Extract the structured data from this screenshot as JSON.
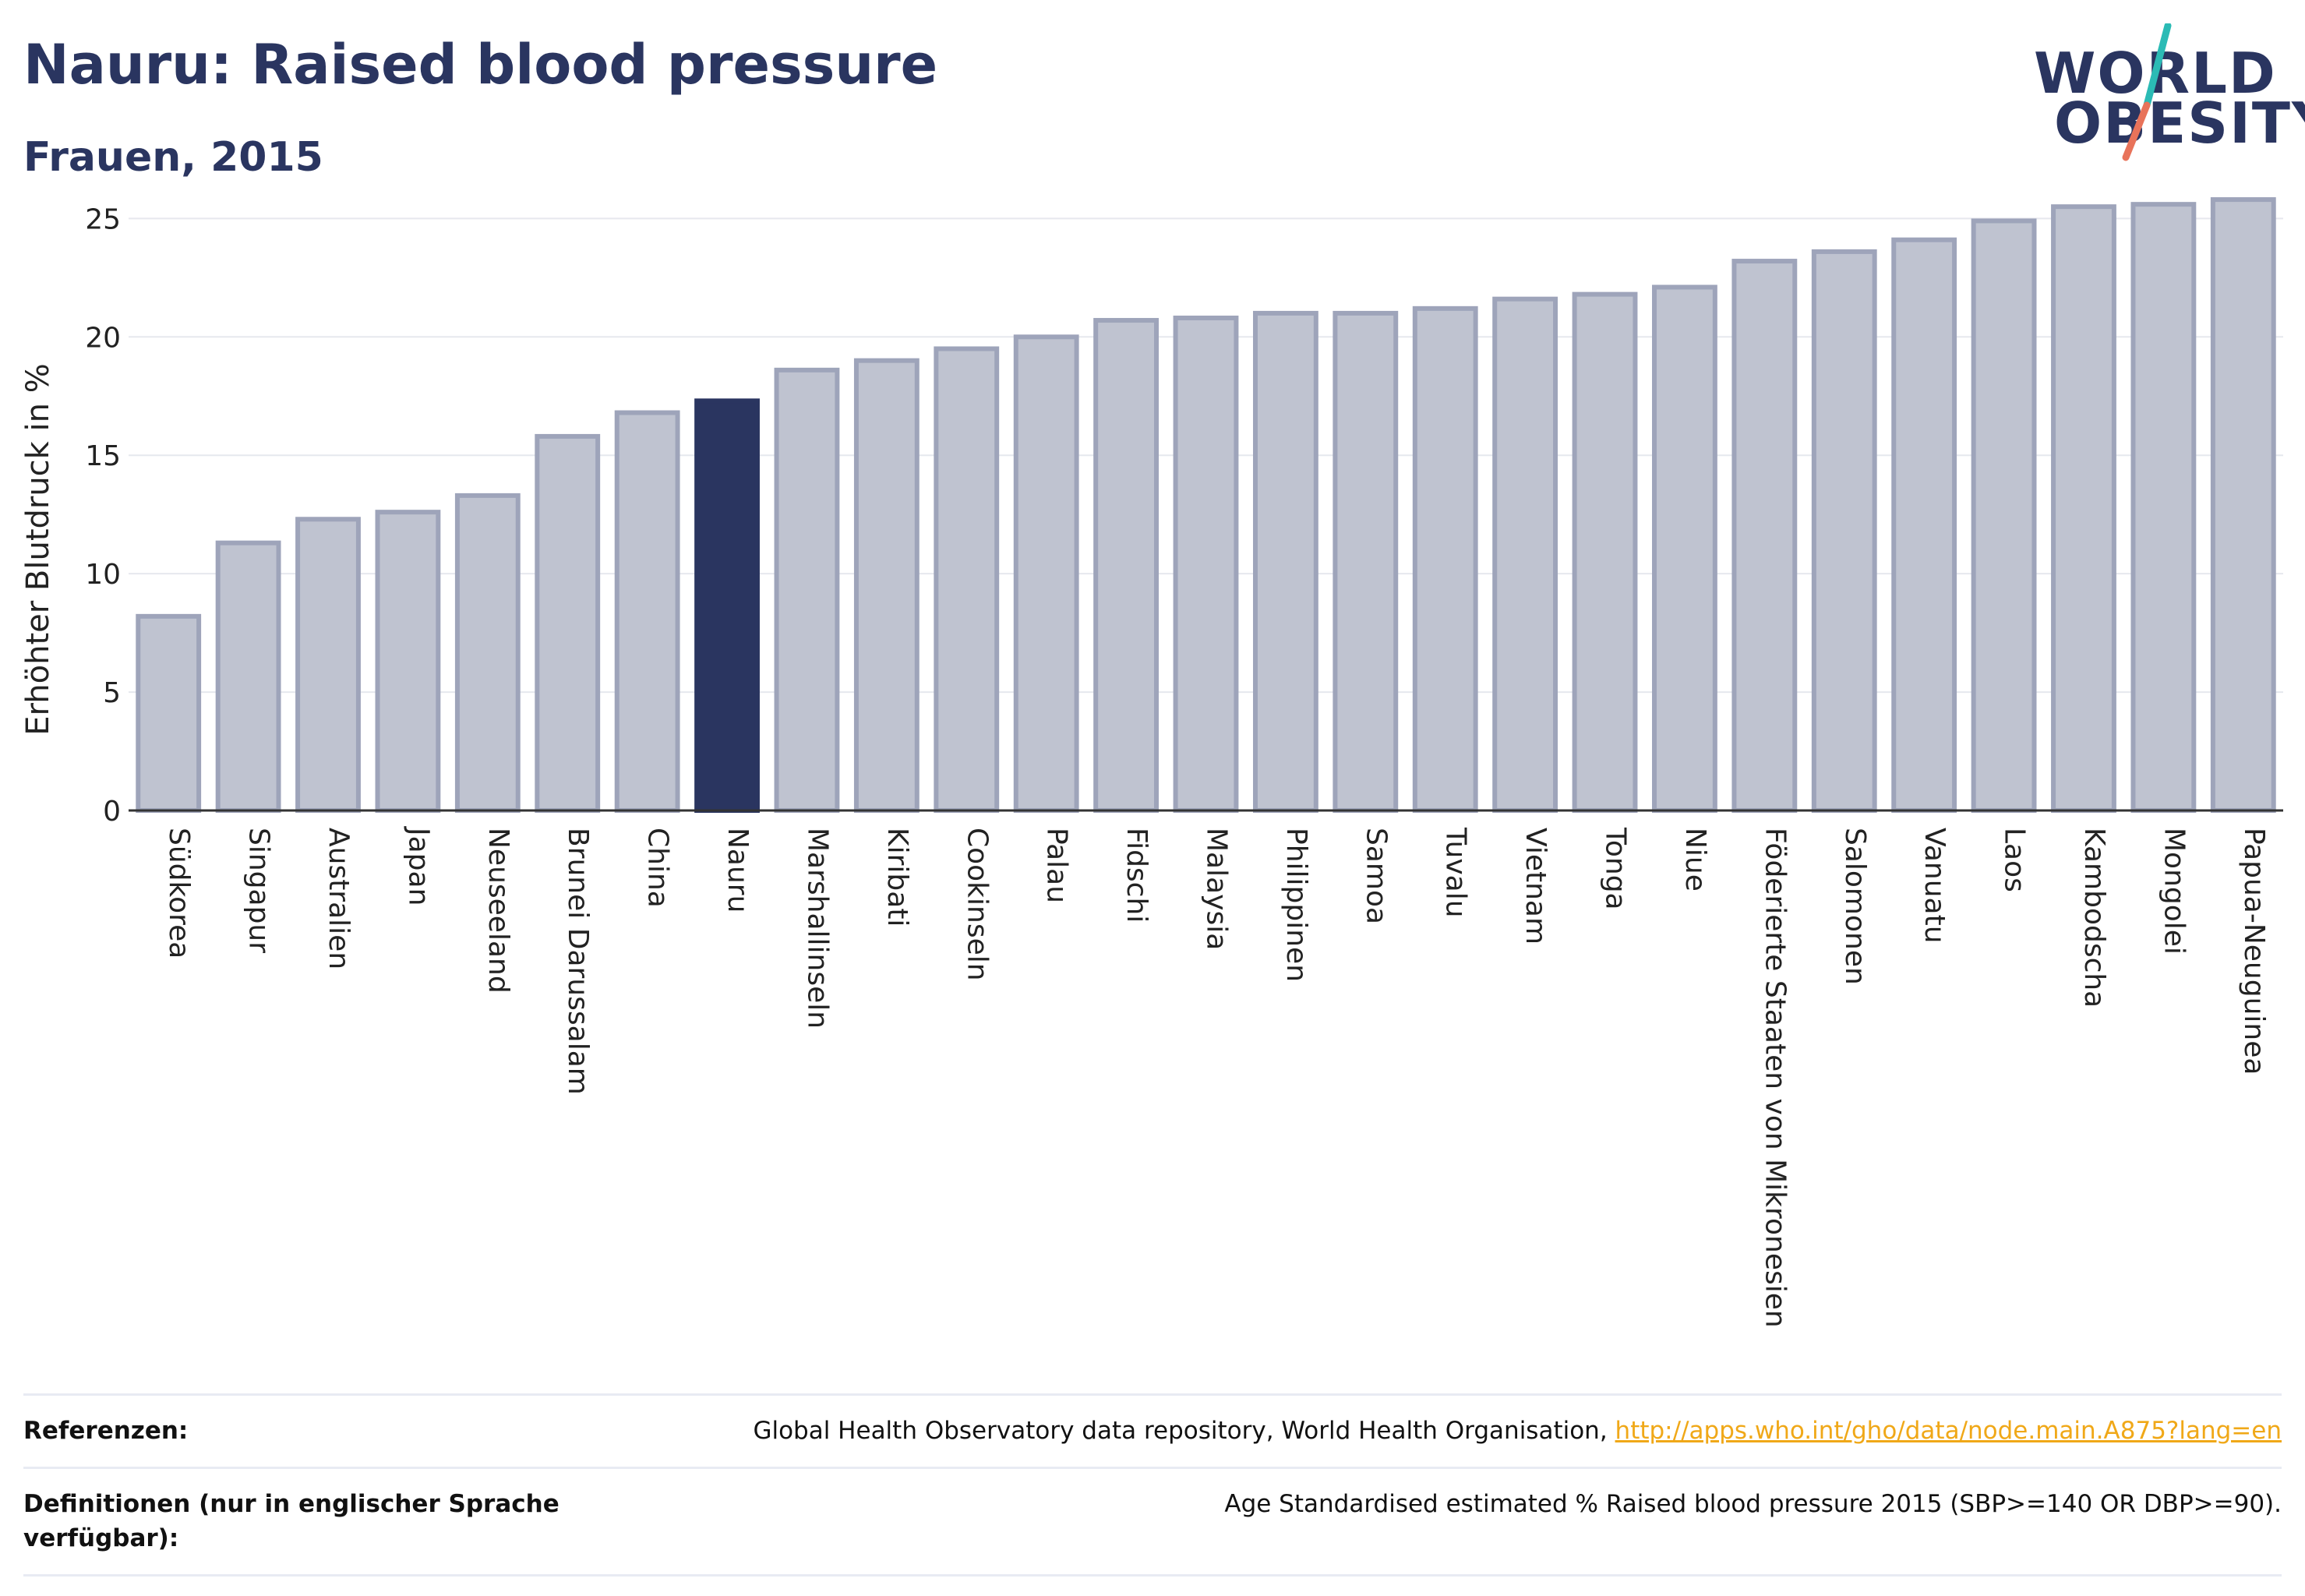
{
  "header": {
    "title": "Nauru: Raised blood pressure",
    "subtitle": "Frauen, 2015"
  },
  "logo": {
    "line1": "WORLD",
    "line2": "OBESITY",
    "slash_colors": [
      "#2bbbb5",
      "#e8735a"
    ]
  },
  "chart_data": {
    "type": "bar",
    "ylabel": "Erhöhter Blutdruck in %",
    "xlabel": "",
    "ylim": [
      0,
      26
    ],
    "yticks": [
      0,
      5,
      10,
      15,
      20,
      25
    ],
    "grid": true,
    "highlight": "Nauru",
    "colors": {
      "bar": "#bfc3d0",
      "bar_edge": "#9ea4ba",
      "highlight": "#2a3560"
    },
    "categories": [
      "Südkorea",
      "Singapur",
      "Australien",
      "Japan",
      "Neuseeland",
      "Brunei Darussalam",
      "China",
      "Nauru",
      "Marshallinseln",
      "Kiribati",
      "Cookinseln",
      "Palau",
      "Fidschi",
      "Malaysia",
      "Philippinen",
      "Samoa",
      "Tuvalu",
      "Vietnam",
      "Tonga",
      "Niue",
      "Föderierte Staaten von Mikronesien",
      "Salomonen",
      "Vanuatu",
      "Laos",
      "Kambodscha",
      "Mongolei",
      "Papua-Neuguinea"
    ],
    "values": [
      8.2,
      11.3,
      12.3,
      12.6,
      13.3,
      15.8,
      16.8,
      17.3,
      18.6,
      19.0,
      19.5,
      20.0,
      20.7,
      20.8,
      21.0,
      21.0,
      21.2,
      21.6,
      21.8,
      22.1,
      23.2,
      23.6,
      24.1,
      24.9,
      25.5,
      25.6,
      25.8
    ]
  },
  "references": {
    "ref_label": "Referenzen:",
    "ref_text": "Global Health Observatory data repository, World Health Organisation, ",
    "ref_link": "http://apps.who.int/gho/data/node.main.A875?lang=en",
    "def_label": "Definitionen (nur in englischer Sprache verfügbar):",
    "def_text": "Age Standardised estimated % Raised blood pressure 2015 (SBP>=140 OR DBP>=90)."
  }
}
